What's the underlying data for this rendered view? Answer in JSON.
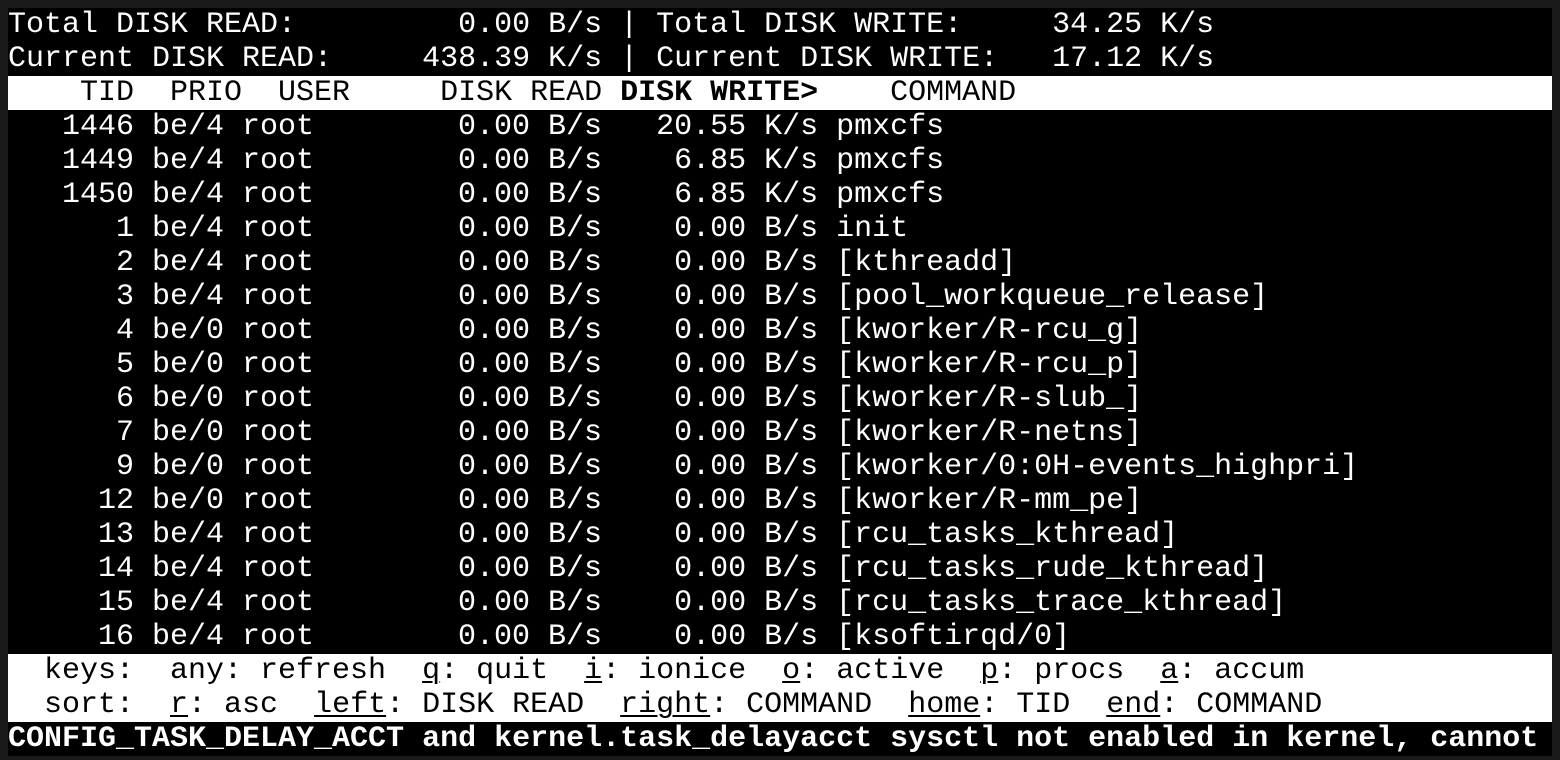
{
  "colors": {
    "background": "#000000",
    "frame": "#1a1a1a",
    "text": "#ffffff",
    "inverse_bg": "#ffffff",
    "inverse_text": "#000000"
  },
  "terminal": {
    "summary": {
      "line1": {
        "left_label": "Total DISK READ:",
        "left_value": "0.00 B/s",
        "separator": "|",
        "right_label": "Total DISK WRITE:",
        "right_value": "34.25 K/s"
      },
      "line2": {
        "left_label": "Current DISK READ:",
        "left_value": "438.39 K/s",
        "separator": "|",
        "right_label": "Current DISK WRITE:",
        "right_value": "17.12 K/s"
      }
    },
    "table": {
      "header": {
        "pre": "    TID  PRIO  USER     DISK READ ",
        "sort_column": "DISK WRITE>",
        "post": "    COMMAND"
      },
      "rows": [
        {
          "tid": "1446",
          "prio": "be/4",
          "user": "root",
          "disk_read": "0.00 B/s",
          "disk_write": "20.55 K/s",
          "command": "pmxcfs"
        },
        {
          "tid": "1449",
          "prio": "be/4",
          "user": "root",
          "disk_read": "0.00 B/s",
          "disk_write": "6.85 K/s",
          "command": "pmxcfs"
        },
        {
          "tid": "1450",
          "prio": "be/4",
          "user": "root",
          "disk_read": "0.00 B/s",
          "disk_write": "6.85 K/s",
          "command": "pmxcfs"
        },
        {
          "tid": "1",
          "prio": "be/4",
          "user": "root",
          "disk_read": "0.00 B/s",
          "disk_write": "0.00 B/s",
          "command": "init"
        },
        {
          "tid": "2",
          "prio": "be/4",
          "user": "root",
          "disk_read": "0.00 B/s",
          "disk_write": "0.00 B/s",
          "command": "[kthreadd]"
        },
        {
          "tid": "3",
          "prio": "be/4",
          "user": "root",
          "disk_read": "0.00 B/s",
          "disk_write": "0.00 B/s",
          "command": "[pool_workqueue_release]"
        },
        {
          "tid": "4",
          "prio": "be/0",
          "user": "root",
          "disk_read": "0.00 B/s",
          "disk_write": "0.00 B/s",
          "command": "[kworker/R-rcu_g]"
        },
        {
          "tid": "5",
          "prio": "be/0",
          "user": "root",
          "disk_read": "0.00 B/s",
          "disk_write": "0.00 B/s",
          "command": "[kworker/R-rcu_p]"
        },
        {
          "tid": "6",
          "prio": "be/0",
          "user": "root",
          "disk_read": "0.00 B/s",
          "disk_write": "0.00 B/s",
          "command": "[kworker/R-slub_]"
        },
        {
          "tid": "7",
          "prio": "be/0",
          "user": "root",
          "disk_read": "0.00 B/s",
          "disk_write": "0.00 B/s",
          "command": "[kworker/R-netns]"
        },
        {
          "tid": "9",
          "prio": "be/0",
          "user": "root",
          "disk_read": "0.00 B/s",
          "disk_write": "0.00 B/s",
          "command": "[kworker/0:0H-events_highpri]"
        },
        {
          "tid": "12",
          "prio": "be/0",
          "user": "root",
          "disk_read": "0.00 B/s",
          "disk_write": "0.00 B/s",
          "command": "[kworker/R-mm_pe]"
        },
        {
          "tid": "13",
          "prio": "be/4",
          "user": "root",
          "disk_read": "0.00 B/s",
          "disk_write": "0.00 B/s",
          "command": "[rcu_tasks_kthread]"
        },
        {
          "tid": "14",
          "prio": "be/4",
          "user": "root",
          "disk_read": "0.00 B/s",
          "disk_write": "0.00 B/s",
          "command": "[rcu_tasks_rude_kthread]"
        },
        {
          "tid": "15",
          "prio": "be/4",
          "user": "root",
          "disk_read": "0.00 B/s",
          "disk_write": "0.00 B/s",
          "command": "[rcu_tasks_trace_kthread]"
        },
        {
          "tid": "16",
          "prio": "be/4",
          "user": "root",
          "disk_read": "0.00 B/s",
          "disk_write": "0.00 B/s",
          "command": "[ksoftirqd/0]"
        }
      ]
    },
    "help": {
      "keys_line": [
        {
          "t": "  keys:  any: refresh  "
        },
        {
          "t": "q",
          "u": true
        },
        {
          "t": ": quit  "
        },
        {
          "t": "i",
          "u": true
        },
        {
          "t": ": ionice  "
        },
        {
          "t": "o",
          "u": true
        },
        {
          "t": ": active  "
        },
        {
          "t": "p",
          "u": true
        },
        {
          "t": ": procs  "
        },
        {
          "t": "a",
          "u": true
        },
        {
          "t": ": accum"
        }
      ],
      "sort_line": [
        {
          "t": "  sort:  "
        },
        {
          "t": "r",
          "u": true
        },
        {
          "t": ": asc  "
        },
        {
          "t": "left",
          "u": true
        },
        {
          "t": ": DISK READ  "
        },
        {
          "t": "right",
          "u": true
        },
        {
          "t": ": COMMAND  "
        },
        {
          "t": "home",
          "u": true
        },
        {
          "t": ": TID  "
        },
        {
          "t": "end",
          "u": true
        },
        {
          "t": ": COMMAND"
        }
      ]
    },
    "status_line": "CONFIG_TASK_DELAY_ACCT and kernel.task_delayacct sysctl not enabled in kernel, cannot"
  }
}
